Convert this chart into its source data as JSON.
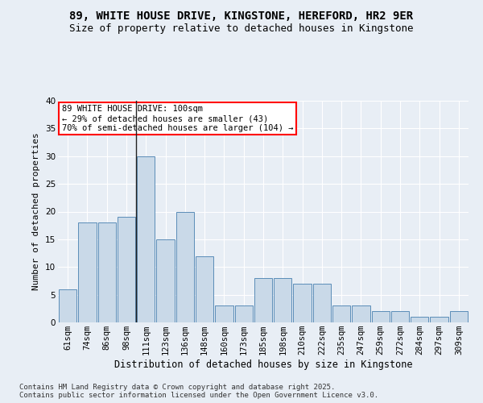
{
  "title1": "89, WHITE HOUSE DRIVE, KINGSTONE, HEREFORD, HR2 9ER",
  "title2": "Size of property relative to detached houses in Kingstone",
  "xlabel": "Distribution of detached houses by size in Kingstone",
  "ylabel": "Number of detached properties",
  "categories": [
    "61sqm",
    "74sqm",
    "86sqm",
    "98sqm",
    "111sqm",
    "123sqm",
    "136sqm",
    "148sqm",
    "160sqm",
    "173sqm",
    "185sqm",
    "198sqm",
    "210sqm",
    "222sqm",
    "235sqm",
    "247sqm",
    "259sqm",
    "272sqm",
    "284sqm",
    "297sqm",
    "309sqm"
  ],
  "values": [
    6,
    18,
    18,
    19,
    30,
    15,
    20,
    12,
    3,
    3,
    8,
    8,
    7,
    7,
    3,
    3,
    2,
    2,
    1,
    1,
    2
  ],
  "bar_color": "#c9d9e8",
  "bar_edge_color": "#5b8db8",
  "annotation_line1": "89 WHITE HOUSE DRIVE: 100sqm",
  "annotation_line2": "← 29% of detached houses are smaller (43)",
  "annotation_line3": "70% of semi-detached houses are larger (104) →",
  "annotation_box_color": "white",
  "annotation_box_edge": "red",
  "property_line_x": 3.5,
  "ylim": [
    0,
    40
  ],
  "yticks": [
    0,
    5,
    10,
    15,
    20,
    25,
    30,
    35,
    40
  ],
  "bg_color": "#e8eef5",
  "plot_bg_color": "#e8eef5",
  "grid_color": "white",
  "footer": "Contains HM Land Registry data © Crown copyright and database right 2025.\nContains public sector information licensed under the Open Government Licence v3.0.",
  "title1_fontsize": 10,
  "title2_fontsize": 9,
  "xlabel_fontsize": 8.5,
  "ylabel_fontsize": 8,
  "tick_fontsize": 7.5,
  "footer_fontsize": 6.5,
  "annotation_fontsize": 7.5
}
